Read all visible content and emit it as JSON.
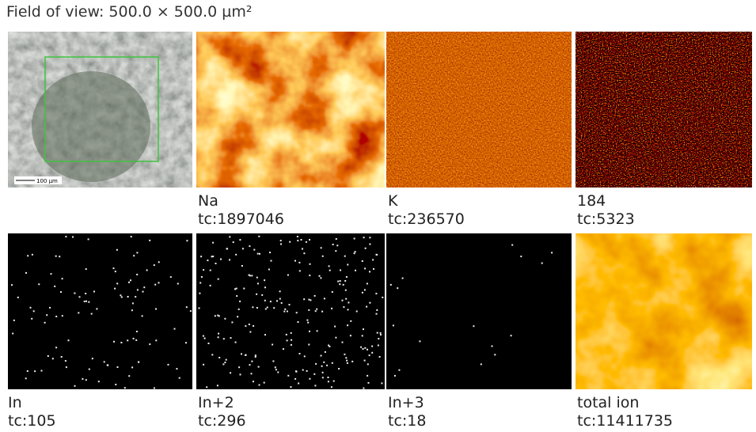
{
  "header": {
    "title": "Field of view: 500.0 × 500.0 µm²"
  },
  "panels": [
    {
      "scale_bar": "100 µm"
    },
    {
      "label": "Na",
      "count": "tc:1897046"
    },
    {
      "label": "K",
      "count": "tc:236570"
    },
    {
      "label": "184",
      "count": "tc:5323"
    },
    {
      "label": "In",
      "count": "tc:105"
    },
    {
      "label": "In+2",
      "count": "tc:296"
    },
    {
      "label": "In+3",
      "count": "tc:18"
    },
    {
      "label": "total ion",
      "count": "tc:11411735"
    }
  ]
}
